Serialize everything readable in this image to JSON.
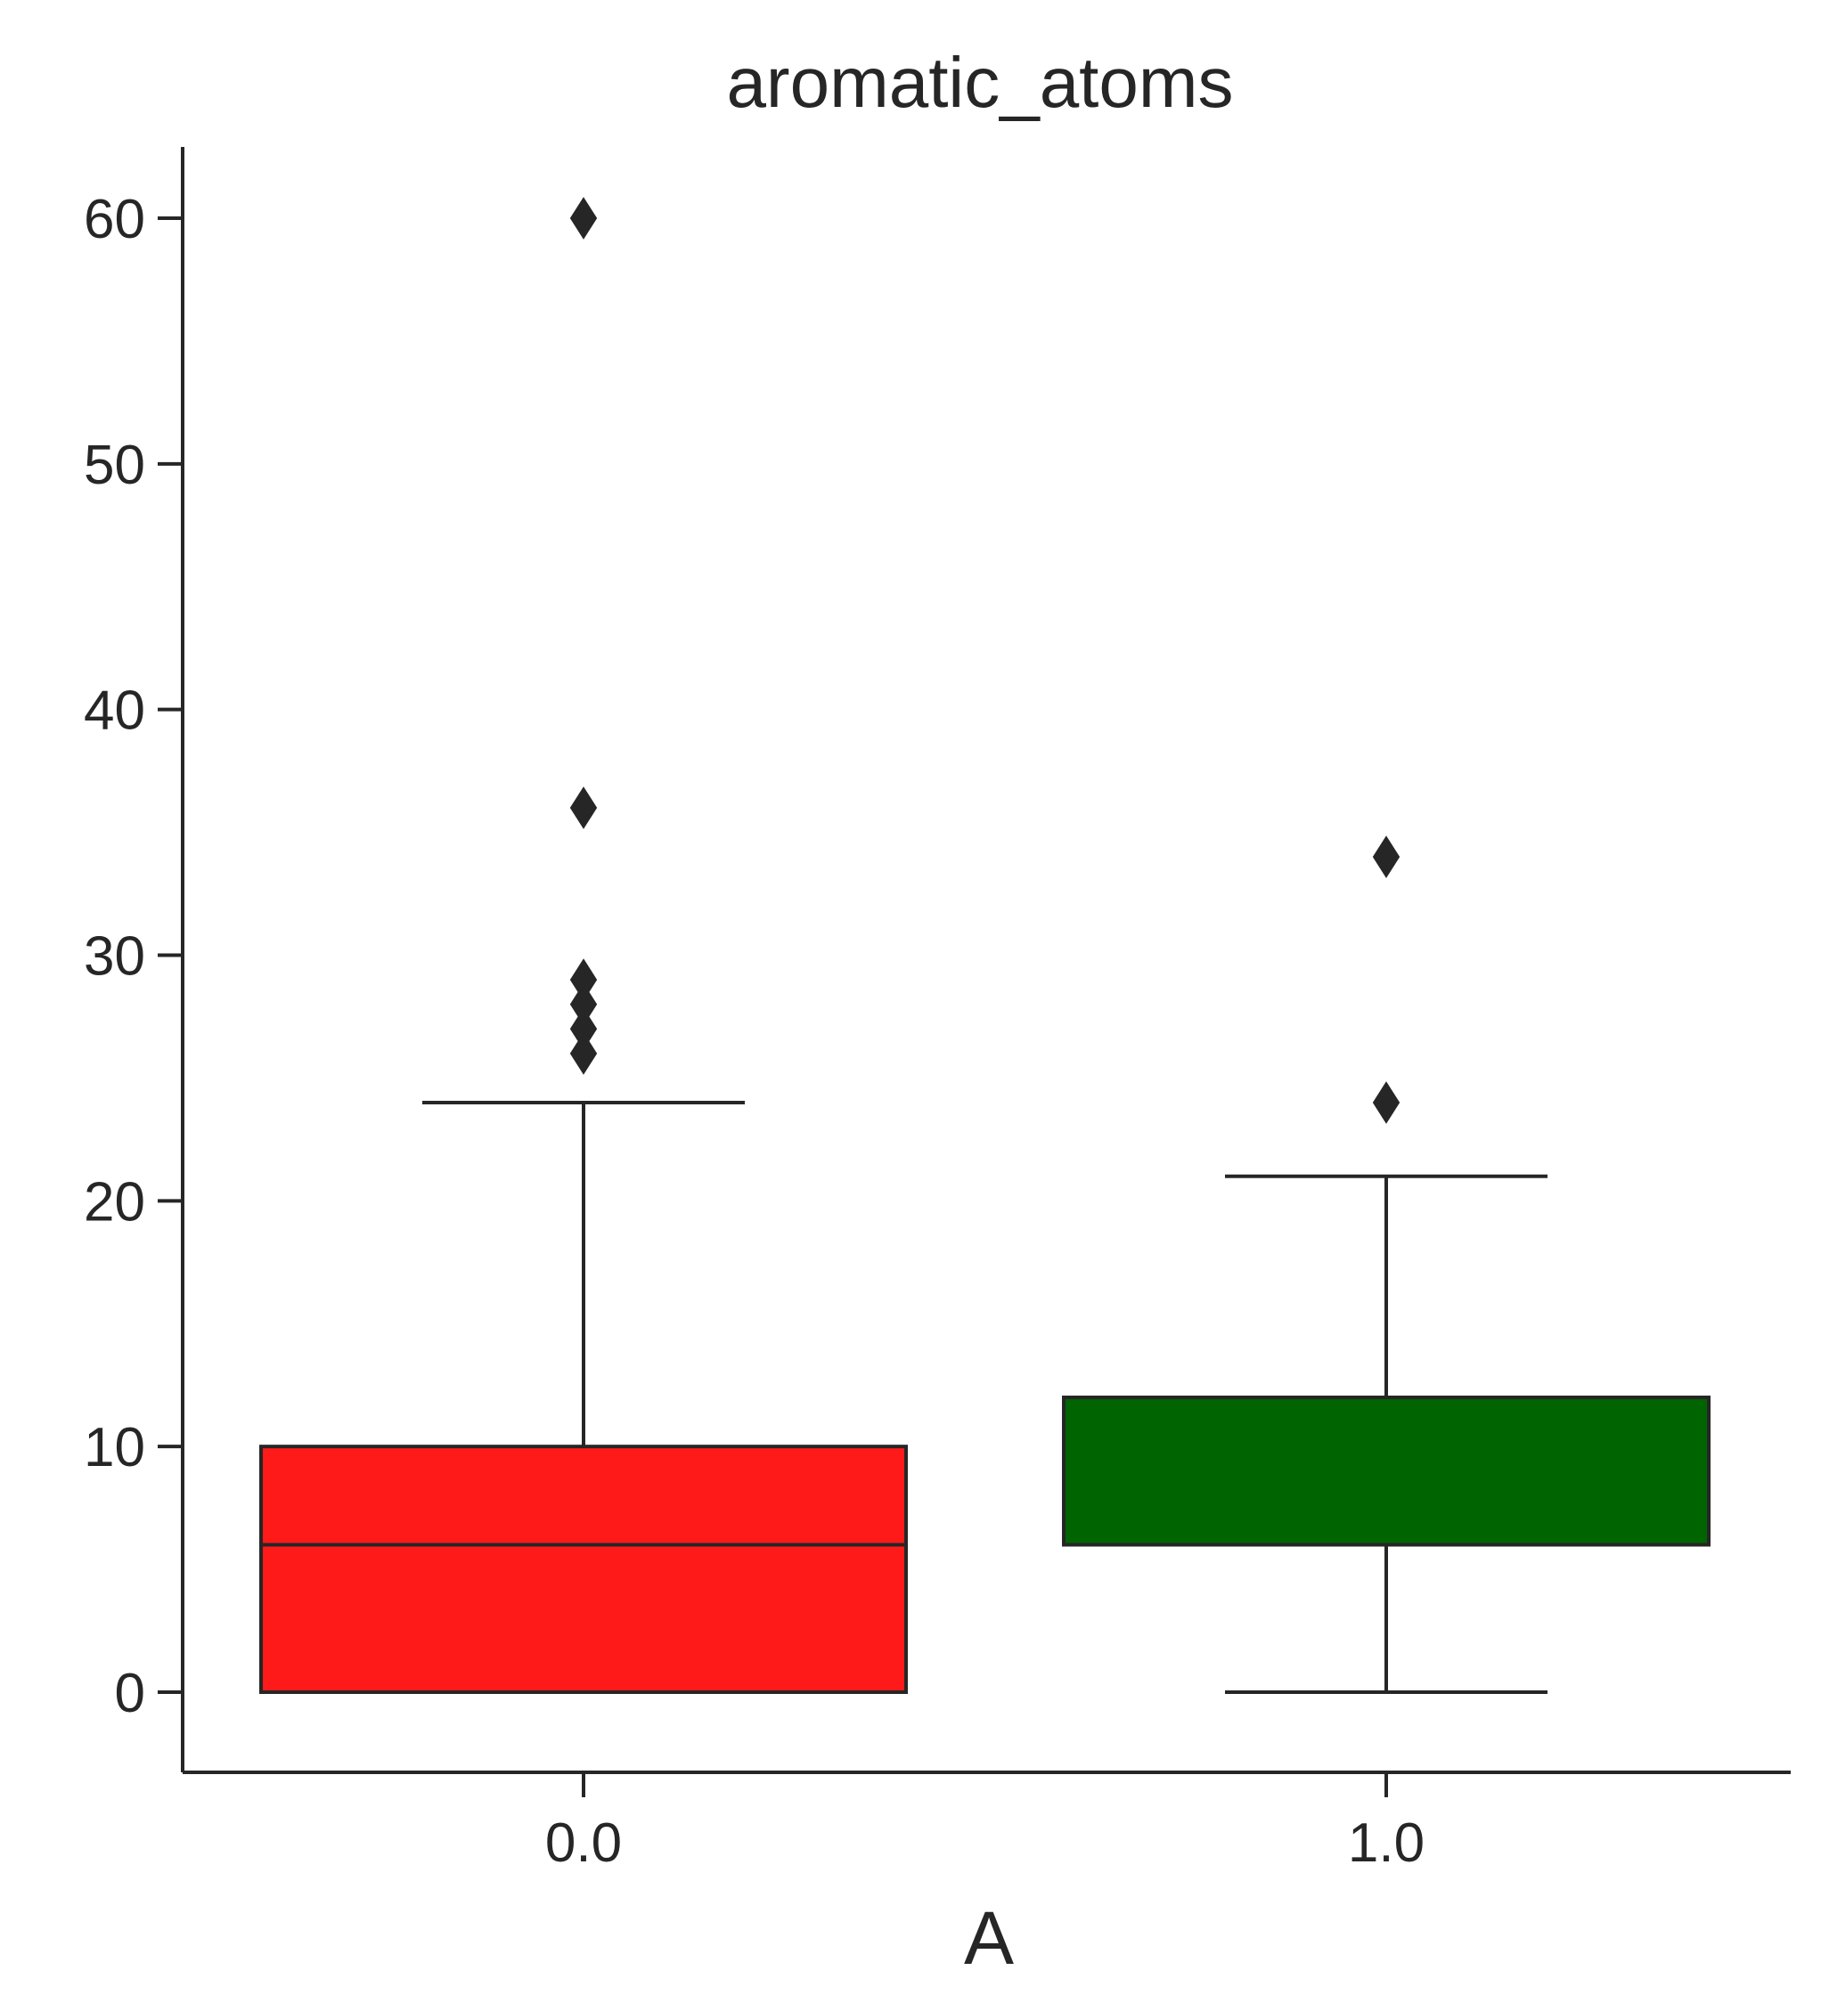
{
  "chart_data": {
    "type": "box",
    "title": "aromatic_atoms",
    "xlabel": "A",
    "ylabel": "",
    "categories": [
      "0.0",
      "1.0"
    ],
    "ylim": [
      -3.2,
      63
    ],
    "yticks": [
      0,
      10,
      20,
      30,
      40,
      50,
      60
    ],
    "grid": false,
    "boxes": [
      {
        "category": "0.0",
        "color": "#ff1a1a",
        "whisker_low": 0,
        "q1": 0,
        "median": 6,
        "q3": 10,
        "whisker_high": 24,
        "outliers": [
          26,
          27,
          28,
          29,
          36,
          60
        ]
      },
      {
        "category": "1.0",
        "color": "#006400",
        "whisker_low": 0,
        "q1": 6,
        "median": 6,
        "q3": 12,
        "whisker_high": 21,
        "outliers": [
          24,
          34
        ]
      }
    ]
  }
}
